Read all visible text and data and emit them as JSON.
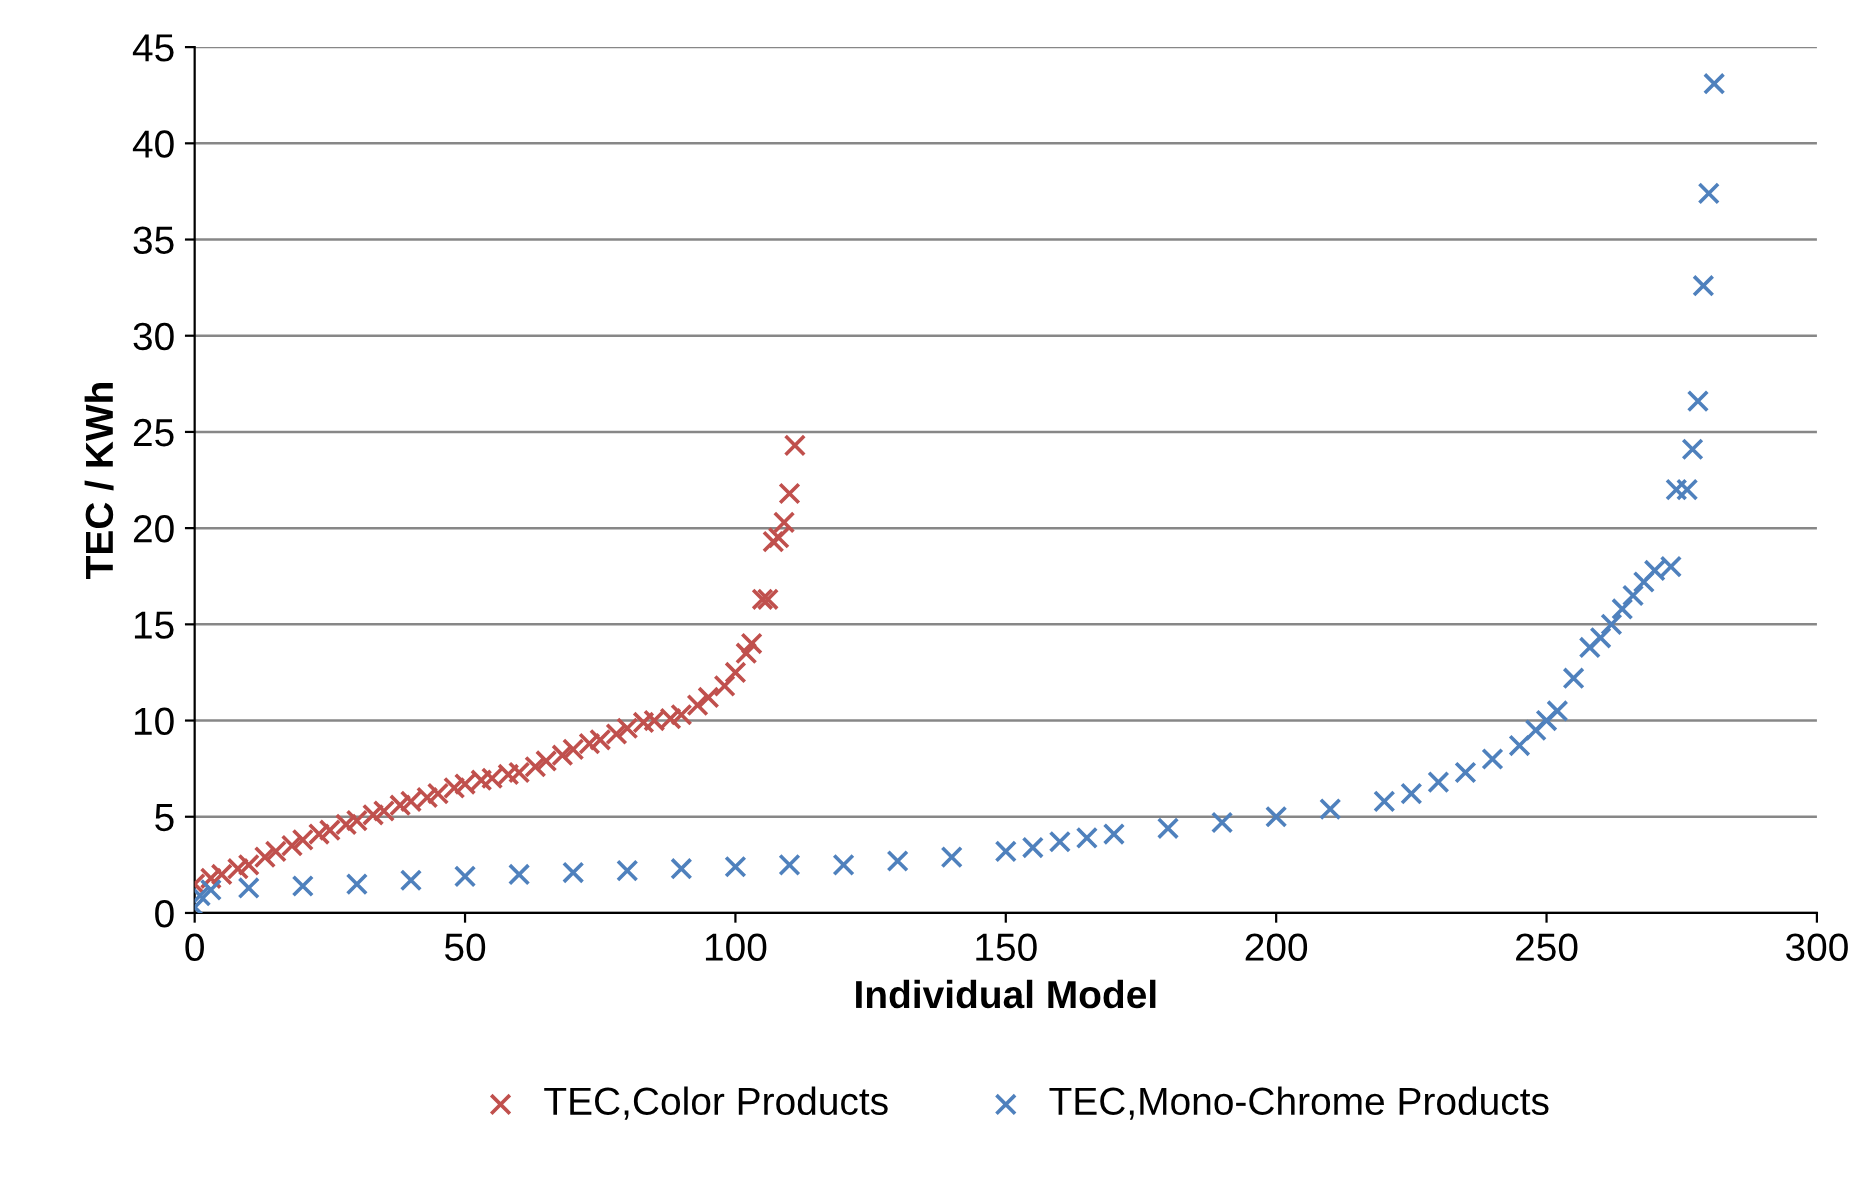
{
  "chart_data": {
    "type": "scatter",
    "xlabel": "Individual Model",
    "ylabel": "TEC / KWh",
    "xlim": [
      0,
      300
    ],
    "xticks": [
      0,
      50,
      100,
      150,
      200,
      250,
      300
    ],
    "ylim": [
      0,
      45
    ],
    "yticks": [
      0,
      5,
      10,
      15,
      20,
      25,
      30,
      35,
      40,
      45
    ],
    "grid": "y",
    "legend": "bottom",
    "series": [
      {
        "name": "TEC,Color Products",
        "color": "#c0504d",
        "marker": "cross",
        "x": [
          0,
          3,
          5,
          8,
          10,
          13,
          15,
          18,
          20,
          23,
          25,
          28,
          30,
          33,
          35,
          38,
          40,
          43,
          45,
          48,
          50,
          53,
          55,
          58,
          60,
          63,
          65,
          68,
          70,
          73,
          75,
          78,
          80,
          83,
          85,
          88,
          90,
          93,
          95,
          98,
          100,
          102,
          103,
          105,
          106,
          107,
          108,
          109,
          110,
          111
        ],
        "values": [
          1.5,
          1.8,
          2.0,
          2.3,
          2.5,
          2.9,
          3.2,
          3.5,
          3.8,
          4.1,
          4.3,
          4.6,
          4.8,
          5.1,
          5.3,
          5.6,
          5.8,
          6.0,
          6.2,
          6.5,
          6.7,
          6.9,
          7.0,
          7.2,
          7.3,
          7.6,
          7.9,
          8.2,
          8.5,
          8.8,
          9.0,
          9.3,
          9.6,
          9.9,
          10.0,
          10.1,
          10.3,
          10.8,
          11.2,
          11.8,
          12.5,
          13.5,
          14.0,
          16.3,
          16.3,
          19.3,
          19.5,
          20.3,
          21.8,
          24.3
        ]
      },
      {
        "name": "TEC,Mono-Chrome Products",
        "color": "#4f81bd",
        "marker": "cross",
        "x": [
          0,
          1,
          3,
          10,
          20,
          30,
          40,
          50,
          60,
          70,
          80,
          90,
          100,
          110,
          120,
          130,
          140,
          150,
          155,
          160,
          165,
          170,
          180,
          190,
          200,
          210,
          220,
          225,
          230,
          235,
          240,
          245,
          248,
          250,
          252,
          255,
          258,
          260,
          262,
          264,
          266,
          268,
          270,
          273,
          274,
          276,
          277,
          278,
          279,
          280,
          281
        ],
        "values": [
          0.3,
          0.9,
          1.2,
          1.3,
          1.4,
          1.5,
          1.7,
          1.9,
          2.0,
          2.1,
          2.2,
          2.3,
          2.4,
          2.5,
          2.5,
          2.7,
          2.9,
          3.2,
          3.4,
          3.7,
          3.9,
          4.1,
          4.4,
          4.7,
          5.0,
          5.4,
          5.8,
          6.2,
          6.8,
          7.3,
          8.0,
          8.7,
          9.5,
          10.0,
          10.5,
          12.2,
          13.8,
          14.3,
          15.0,
          15.8,
          16.5,
          17.2,
          17.8,
          18.0,
          22.0,
          22.0,
          24.1,
          26.6,
          32.6,
          37.4,
          43.1
        ]
      }
    ]
  }
}
